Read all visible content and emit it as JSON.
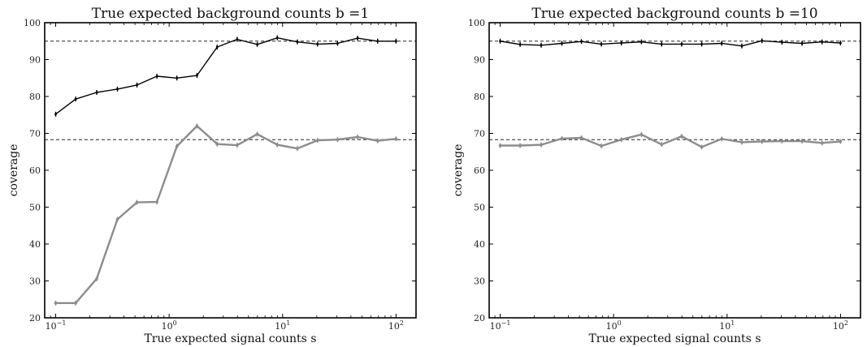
{
  "chart_data": [
    {
      "type": "line",
      "title": "True expected background counts b =1",
      "xlabel": "True expected signal counts s",
      "ylabel": "coverage",
      "xscale": "log",
      "xlim": [
        0.08,
        150
      ],
      "ylim": [
        20,
        100
      ],
      "yticks": [
        20,
        30,
        40,
        50,
        60,
        70,
        80,
        90,
        100
      ],
      "xticks": [
        {
          "value": 0.1,
          "base": "10",
          "exp": "−1"
        },
        {
          "value": 1,
          "base": "10",
          "exp": "0"
        },
        {
          "value": 10,
          "base": "10",
          "exp": "1"
        },
        {
          "value": 100,
          "base": "10",
          "exp": "2"
        }
      ],
      "reference_lines": [
        95,
        68.3
      ],
      "grid": false,
      "x": [
        0.1,
        0.15,
        0.23,
        0.35,
        0.52,
        0.78,
        1.17,
        1.76,
        2.65,
        3.98,
        5.98,
        8.98,
        13.5,
        20.3,
        30.5,
        45.8,
        68.8,
        100
      ],
      "series": [
        {
          "color": "#000000",
          "values": [
            75.2,
            79.3,
            81.1,
            82.0,
            83.1,
            85.5,
            85.0,
            85.7,
            93.4,
            95.5,
            94.1,
            95.9,
            94.8,
            94.2,
            94.4,
            95.8,
            95.0,
            95.0
          ]
        },
        {
          "color": "#8c8c8c",
          "values": [
            24.0,
            24.0,
            30.6,
            46.7,
            51.3,
            51.4,
            66.5,
            72.0,
            67.1,
            66.8,
            69.8,
            66.9,
            65.9,
            68.1,
            68.3,
            69.0,
            68.0,
            68.5
          ]
        }
      ]
    },
    {
      "type": "line",
      "title": "True expected background counts b =10",
      "xlabel": "True expected signal counts s",
      "ylabel": "coverage",
      "xscale": "log",
      "xlim": [
        0.08,
        150
      ],
      "ylim": [
        20,
        100
      ],
      "yticks": [
        20,
        30,
        40,
        50,
        60,
        70,
        80,
        90,
        100
      ],
      "xticks": [
        {
          "value": 0.1,
          "base": "10",
          "exp": "−1"
        },
        {
          "value": 1,
          "base": "10",
          "exp": "0"
        },
        {
          "value": 10,
          "base": "10",
          "exp": "1"
        },
        {
          "value": 100,
          "base": "10",
          "exp": "2"
        }
      ],
      "reference_lines": [
        95,
        68.3
      ],
      "grid": false,
      "x": [
        0.1,
        0.15,
        0.23,
        0.35,
        0.52,
        0.78,
        1.17,
        1.76,
        2.65,
        3.98,
        5.98,
        8.98,
        13.5,
        20.3,
        30.5,
        45.8,
        68.8,
        100
      ],
      "series": [
        {
          "color": "#000000",
          "values": [
            95.0,
            94.1,
            93.9,
            94.4,
            94.9,
            94.2,
            94.5,
            94.8,
            94.2,
            94.2,
            94.2,
            94.4,
            93.7,
            95.1,
            94.7,
            94.4,
            94.8,
            94.5
          ]
        },
        {
          "color": "#8c8c8c",
          "values": [
            66.7,
            66.7,
            66.9,
            68.6,
            68.8,
            66.6,
            68.3,
            69.7,
            67.0,
            69.2,
            66.3,
            68.5,
            67.6,
            67.8,
            67.9,
            67.9,
            67.4,
            67.8
          ]
        }
      ]
    }
  ]
}
